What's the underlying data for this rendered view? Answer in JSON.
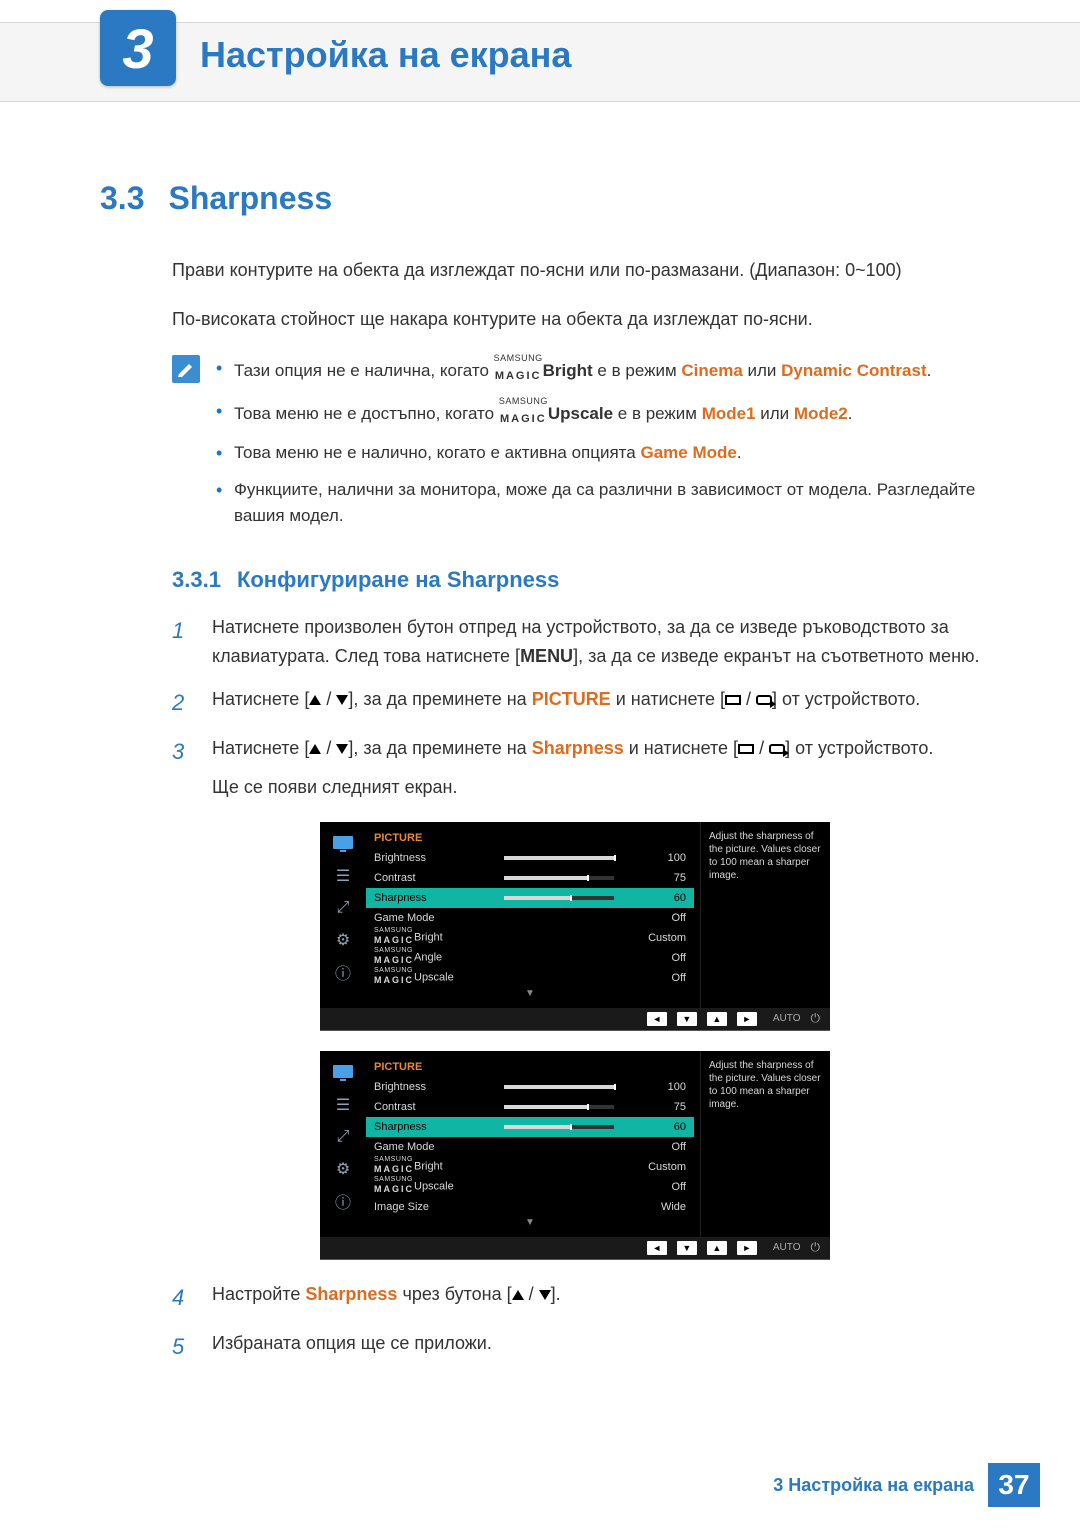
{
  "chapter": {
    "number": "3",
    "title": "Настройка на екрана"
  },
  "section": {
    "number": "3.3",
    "title": "Sharpness"
  },
  "intro": {
    "p1": "Прави контурите на обекта да изглеждат по-ясни или по-размазани. (Диапазон: 0~100)",
    "p2": "По-високата стойност ще накара контурите на обекта да изглеждат по-ясни."
  },
  "notes": {
    "n1a": "Тази опция не е налична, когато ",
    "n1b": "Bright",
    "n1c": " е в режим ",
    "n1d": "Cinema",
    "n1e": " или ",
    "n1f": "Dynamic Contrast",
    "n1g": ".",
    "n2a": "Това меню не е достъпно, когато ",
    "n2b": "Upscale",
    "n2c": " е в режим ",
    "n2d": "Mode1",
    "n2e": " или ",
    "n2f": "Mode2",
    "n2g": ".",
    "n3a": "Това меню не е налично, когато е активна опцията ",
    "n3b": "Game Mode",
    "n3c": ".",
    "n4": "Функциите, налични за монитора, може да са различни в зависимост от модела. Разгледайте вашия модел."
  },
  "magic": {
    "top": "SAMSUNG",
    "bottom": "MAGIC"
  },
  "subsection": {
    "number": "3.3.1",
    "title": "Конфигуриране на Sharpness"
  },
  "steps": {
    "s1": {
      "n": "1",
      "a": "Натиснете произволен бутон отпред на устройството, за да се изведе ръководството за клавиатурата. След това натиснете [",
      "menu": "MENU",
      "b": "], за да се изведе екранът на съответното меню."
    },
    "s2": {
      "n": "2",
      "a": "Натиснете [",
      "b": "], за да преминете на ",
      "pic": "PICTURE",
      "c": " и натиснете [",
      "d": "] от устройството."
    },
    "s3": {
      "n": "3",
      "a": "Натиснете [",
      "b": "], за да преминете на ",
      "sh": "Sharpness",
      "c": " и натиснете [",
      "d": "] от устройството.",
      "e": "Ще се появи следният екран."
    },
    "s4": {
      "n": "4",
      "a": "Настройте ",
      "sh": "Sharpness",
      "b": " чрез бутона [",
      "c": "]."
    },
    "s5": {
      "n": "5",
      "a": "Избраната опция ще се приложи."
    }
  },
  "osd": {
    "title": "PICTURE",
    "help": "Adjust the sharpness of the picture. Values closer to 100 mean a sharper image.",
    "nav_auto": "AUTO",
    "rows1": [
      {
        "label": "Brightness",
        "bar": 100,
        "val": "100"
      },
      {
        "label": "Contrast",
        "bar": 75,
        "val": "75"
      },
      {
        "label": "Sharpness",
        "bar": 60,
        "val": "60",
        "selected": true
      },
      {
        "label": "Game Mode",
        "val": "Off"
      },
      {
        "label_magic": "Bright",
        "val": "Custom"
      },
      {
        "label_magic": "Angle",
        "val": "Off"
      },
      {
        "label_magic": "Upscale",
        "val": "Off"
      }
    ],
    "rows2": [
      {
        "label": "Brightness",
        "bar": 100,
        "val": "100"
      },
      {
        "label": "Contrast",
        "bar": 75,
        "val": "75"
      },
      {
        "label": "Sharpness",
        "bar": 60,
        "val": "60",
        "selected": true
      },
      {
        "label": "Game Mode",
        "val": "Off"
      },
      {
        "label_magic": "Bright",
        "val": "Custom"
      },
      {
        "label_magic": "Upscale",
        "val": "Off"
      },
      {
        "label": "Image Size",
        "val": "Wide"
      }
    ]
  },
  "footer": {
    "text": "3 Настройка на екрана",
    "page": "37"
  },
  "colors": {
    "brand": "#2b79c2",
    "accent": "#df6c1e",
    "osd_bg": "#000000",
    "osd_title": "#e78a2e",
    "osd_selected": "#11b5a3",
    "osd_text": "#d8d8d8"
  }
}
